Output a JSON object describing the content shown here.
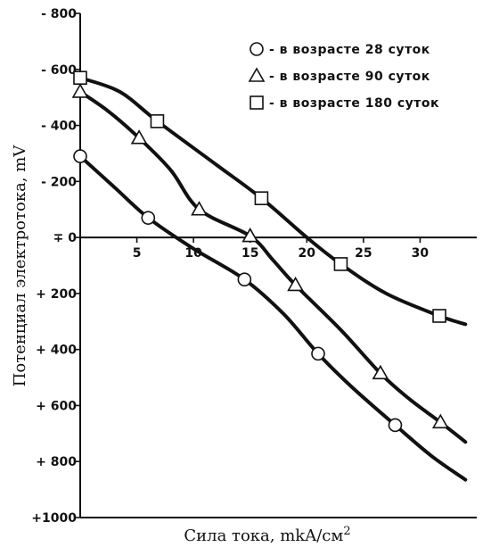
{
  "chart_data": {
    "type": "line",
    "xlabel": "Сила тока, mkA/см",
    "xlabel_sup": "2",
    "ylabel": "Потенциал электротока, mV",
    "xlim": [
      0,
      35
    ],
    "ylim": [
      -800,
      1000
    ],
    "y_inverted": true,
    "xticks": [
      {
        "value": 5,
        "label": "5"
      },
      {
        "value": 10,
        "label": "10"
      },
      {
        "value": 15,
        "label": "15"
      },
      {
        "value": 20,
        "label": "20"
      },
      {
        "value": 25,
        "label": "25"
      },
      {
        "value": 30,
        "label": "30"
      }
    ],
    "yticks": [
      {
        "value": -800,
        "label": "- 800"
      },
      {
        "value": -600,
        "label": "- 600"
      },
      {
        "value": -400,
        "label": "- 400"
      },
      {
        "value": -200,
        "label": "- 200"
      },
      {
        "value": 0,
        "label": "∓ 0"
      },
      {
        "value": 200,
        "label": "+ 200"
      },
      {
        "value": 400,
        "label": "+ 400"
      },
      {
        "value": 600,
        "label": "+ 600"
      },
      {
        "value": 800,
        "label": "+ 800"
      },
      {
        "value": 1000,
        "label": "+1000"
      }
    ],
    "legend_position": "top-right",
    "series": [
      {
        "name": "- в возрасте 28 суток",
        "marker": "circle",
        "points": [
          [
            0,
            -290
          ],
          [
            6,
            -70
          ],
          [
            14.5,
            150
          ],
          [
            21,
            415
          ],
          [
            27.8,
            670
          ]
        ],
        "curve": [
          [
            0,
            -290
          ],
          [
            3,
            -180
          ],
          [
            6,
            -70
          ],
          [
            10,
            40
          ],
          [
            14.5,
            150
          ],
          [
            18,
            275
          ],
          [
            21,
            415
          ],
          [
            24,
            535
          ],
          [
            27.8,
            670
          ],
          [
            31,
            780
          ],
          [
            34,
            865
          ]
        ]
      },
      {
        "name": "- в возрасте 90 суток",
        "marker": "triangle",
        "points": [
          [
            0,
            -520
          ],
          [
            5.2,
            -355
          ],
          [
            10.5,
            -100
          ],
          [
            15,
            -5
          ],
          [
            19,
            170
          ],
          [
            26.5,
            485
          ],
          [
            31.8,
            660
          ]
        ],
        "curve": [
          [
            0,
            -520
          ],
          [
            2.5,
            -450
          ],
          [
            5.2,
            -355
          ],
          [
            8,
            -240
          ],
          [
            10.5,
            -100
          ],
          [
            15,
            -5
          ],
          [
            17,
            80
          ],
          [
            19,
            170
          ],
          [
            23,
            330
          ],
          [
            26.5,
            485
          ],
          [
            29,
            575
          ],
          [
            31.8,
            660
          ],
          [
            34,
            730
          ]
        ]
      },
      {
        "name": "- в возрасте 180 суток",
        "marker": "square",
        "points": [
          [
            0,
            -570
          ],
          [
            6.8,
            -415
          ],
          [
            16,
            -140
          ],
          [
            23,
            95
          ],
          [
            31.7,
            280
          ]
        ],
        "curve": [
          [
            0,
            -570
          ],
          [
            3.5,
            -520
          ],
          [
            6.8,
            -415
          ],
          [
            12,
            -260
          ],
          [
            16,
            -140
          ],
          [
            20,
            0
          ],
          [
            23,
            95
          ],
          [
            27,
            200
          ],
          [
            31.7,
            280
          ],
          [
            34,
            310
          ]
        ]
      }
    ]
  }
}
